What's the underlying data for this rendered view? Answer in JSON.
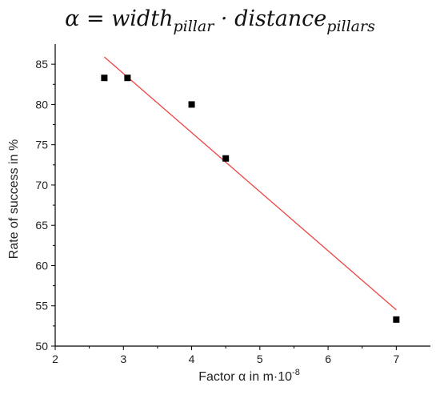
{
  "chart_data": {
    "type": "scatter",
    "title": {
      "lhs": "α",
      "eq": "=",
      "term1": "width",
      "sub1": "pillar",
      "dot": "·",
      "term2": "distance",
      "sub2": "pillars"
    },
    "xlabel": "Factor α in m·10",
    "xlabel_exp": "-8",
    "ylabel": "Rate of success in %",
    "xlim": [
      2,
      7.5
    ],
    "ylim": [
      50,
      87.5
    ],
    "xticks": [
      2,
      3,
      4,
      5,
      6,
      7
    ],
    "yticks": [
      50,
      55,
      60,
      65,
      70,
      75,
      80,
      85
    ],
    "points": [
      {
        "x": 2.72,
        "y": 83.3
      },
      {
        "x": 3.06,
        "y": 83.3
      },
      {
        "x": 4.0,
        "y": 80.0
      },
      {
        "x": 4.5,
        "y": 73.3
      },
      {
        "x": 7.0,
        "y": 53.3
      }
    ],
    "fit_line": {
      "x": [
        2.72,
        7.0
      ],
      "y": [
        85.9,
        54.5
      ]
    },
    "grid": false,
    "colors": {
      "points": "#000000",
      "fit_line": "#ef4444",
      "axes": "#000000"
    }
  }
}
